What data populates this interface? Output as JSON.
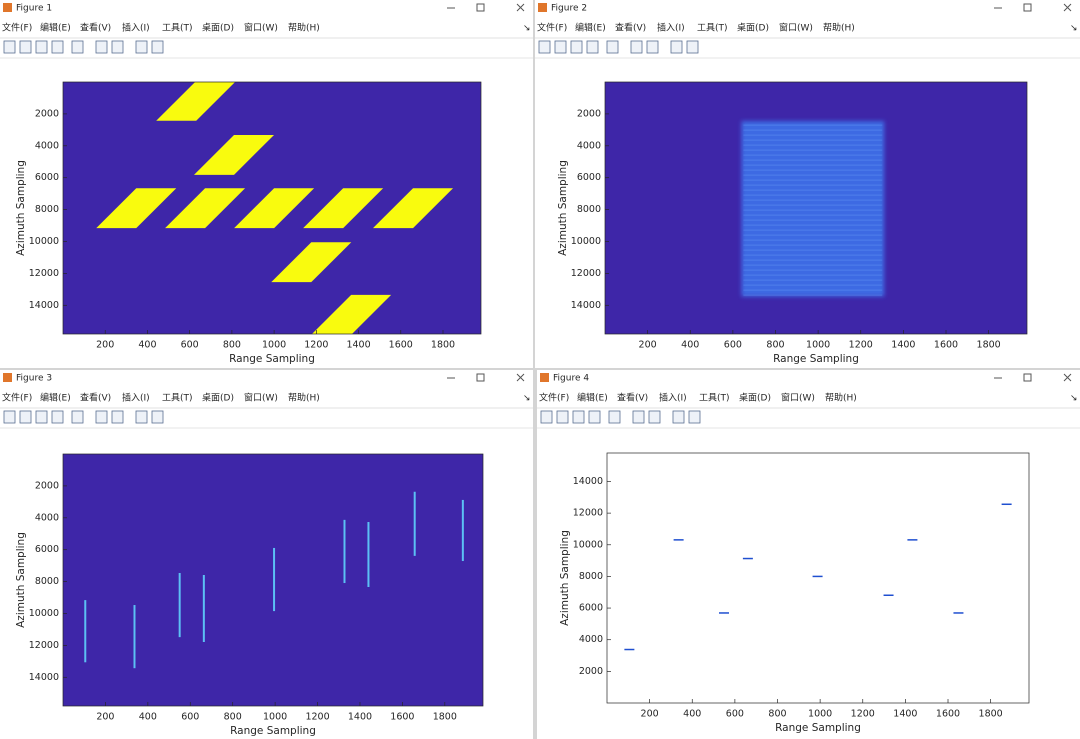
{
  "windows": [
    {
      "title": "Figure 1"
    },
    {
      "title": "Figure 2"
    },
    {
      "title": "Figure 3"
    },
    {
      "title": "Figure 4"
    }
  ],
  "menu": [
    "文件(F)",
    "编辑(E)",
    "查看(V)",
    "插入(I)",
    "工具(T)",
    "桌面(D)",
    "窗口(W)",
    "帮助(H)"
  ],
  "chart_data": [
    {
      "type": "patches",
      "xlabel": "Range Sampling",
      "ylabel": "Azimuth Sampling",
      "xlim": [
        0,
        1980
      ],
      "ylim": [
        0,
        15800
      ],
      "y_reversed": true,
      "xticks": [
        200,
        400,
        600,
        800,
        1000,
        1200,
        1400,
        1600,
        1800
      ],
      "yticks": [
        2000,
        4000,
        6000,
        8000,
        10000,
        12000,
        14000
      ],
      "background": "#3e26a8",
      "color": "#f9fb0e",
      "x": [
        631,
        810,
        347,
        673,
        1000,
        1327,
        1658,
        1176,
        1365
      ],
      "y": [
        1180,
        4570,
        7910,
        7910,
        7910,
        7910,
        7910,
        11300,
        14600
      ]
    },
    {
      "type": "region",
      "xlabel": "Range Sampling",
      "ylabel": "Azimuth Sampling",
      "xlim": [
        0,
        1980
      ],
      "ylim": [
        0,
        15800
      ],
      "y_reversed": true,
      "xticks": [
        200,
        400,
        600,
        800,
        1000,
        1200,
        1400,
        1600,
        1800
      ],
      "yticks": [
        2000,
        4000,
        6000,
        8000,
        10000,
        12000,
        14000
      ],
      "background": "#3e26a8",
      "color": "#3d7cf2",
      "x_range": [
        640,
        1310
      ],
      "y_range": [
        2450,
        13450
      ]
    },
    {
      "type": "streaks",
      "xlabel": "Range Sampling",
      "ylabel": "Azimuth Sampling",
      "xlim": [
        0,
        1980
      ],
      "ylim": [
        0,
        15800
      ],
      "y_reversed": true,
      "xticks": [
        200,
        400,
        600,
        800,
        1000,
        1200,
        1400,
        1600,
        1800
      ],
      "yticks": [
        2000,
        4000,
        6000,
        8000,
        10000,
        12000,
        14000
      ],
      "background": "#3e26a8",
      "color": "#5cc0f4",
      "x": [
        105,
        337,
        550,
        664,
        995,
        1327,
        1440,
        1658,
        1885
      ],
      "y_start": [
        9160,
        9470,
        7460,
        7590,
        5890,
        4130,
        4260,
        2370,
        2880
      ],
      "y_end": [
        13060,
        13430,
        11480,
        11790,
        9850,
        8090,
        8340,
        6390,
        6710
      ]
    },
    {
      "type": "scatter",
      "xlabel": "Range Sampling",
      "ylabel": "Azimuth Sampling",
      "xlim": [
        0,
        1980
      ],
      "ylim": [
        0,
        15800
      ],
      "y_reversed": false,
      "xticks": [
        200,
        400,
        600,
        800,
        1000,
        1200,
        1400,
        1600,
        1800
      ],
      "yticks": [
        2000,
        4000,
        6000,
        8000,
        10000,
        12000,
        14000
      ],
      "background": "#ffffff",
      "color": "#1f4fd0",
      "x": [
        105,
        336,
        549,
        661,
        988,
        1321,
        1433,
        1649,
        1875
      ],
      "y": [
        3380,
        10310,
        5690,
        9130,
        8000,
        6810,
        10310,
        5690,
        12560
      ]
    }
  ]
}
